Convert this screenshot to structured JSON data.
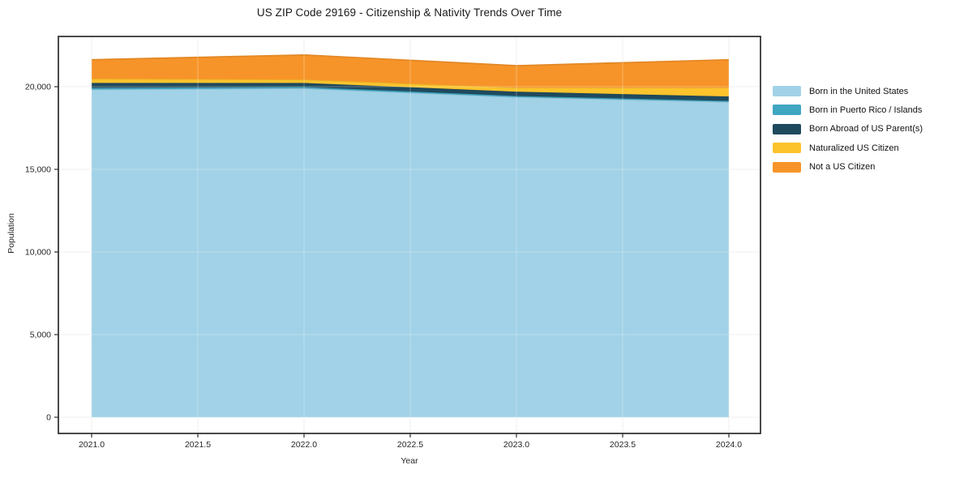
{
  "title": "US ZIP Code 29169 - Citizenship & Nativity Trends Over Time",
  "chart_data": {
    "type": "area",
    "stacked": true,
    "title": "US ZIP Code 29169 - Citizenship & Nativity Trends Over Time",
    "xlabel": "Year",
    "ylabel": "Population",
    "x": [
      2021,
      2022,
      2023,
      2024
    ],
    "series": [
      {
        "name": "Born in the United States",
        "color": "#a1d2e7",
        "values": [
          19830,
          19900,
          19370,
          19080
        ]
      },
      {
        "name": "Born in Puerto Rico / Islands",
        "color": "#3fa6c2",
        "values": [
          100,
          80,
          70,
          60
        ]
      },
      {
        "name": "Born Abroad of US Parent(s)",
        "color": "#1f4a5e",
        "values": [
          300,
          250,
          260,
          270
        ]
      },
      {
        "name": "Naturalized US Citizen",
        "color": "#fcc32d",
        "values": [
          250,
          200,
          240,
          530
        ]
      },
      {
        "name": "Not a US Citizen",
        "color": "#f79429",
        "values": [
          1150,
          1490,
          1330,
          1690
        ]
      }
    ],
    "x_tick_values": [
      2021.0,
      2021.5,
      2022.0,
      2022.5,
      2023.0,
      2023.5,
      2024.0
    ],
    "x_tick_labels": [
      "2021.0",
      "2021.5",
      "2022.0",
      "2022.5",
      "2023.0",
      "2023.5",
      "2024.0"
    ],
    "y_tick_values": [
      0,
      5000,
      10000,
      15000,
      20000
    ],
    "y_tick_labels": [
      "0",
      "5,000",
      "10,000",
      "15,000",
      "20,000"
    ],
    "xlim": [
      2020.8435,
      2024.1489
    ],
    "ylim": [
      -980,
      23040
    ],
    "grid": true,
    "legend_position": "right outside",
    "colors": {
      "grid": "#e9e9e9",
      "frame": "#2b2b2b",
      "plot_background": "#ffffff",
      "figure_background": "#ffffff"
    }
  }
}
